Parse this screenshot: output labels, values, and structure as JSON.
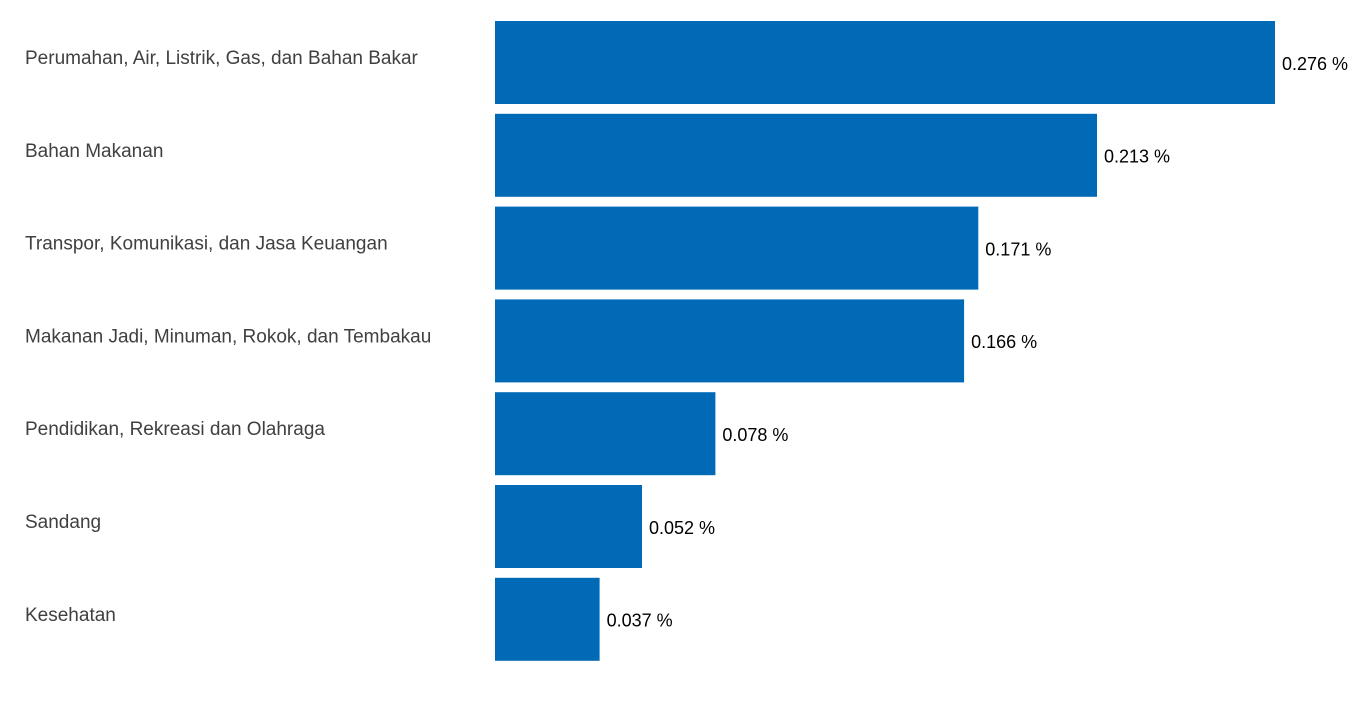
{
  "chart_data": {
    "type": "bar",
    "orientation": "horizontal",
    "categories": [
      "Perumahan, Air, Listrik, Gas, dan Bahan Bakar",
      "Bahan Makanan",
      "Transpor, Komunikasi, dan Jasa Keuangan",
      "Makanan Jadi, Minuman, Rokok, dan Tembakau",
      "Pendidikan, Rekreasi dan Olahraga",
      "Sandang",
      "Kesehatan"
    ],
    "values": [
      0.276,
      0.213,
      0.171,
      0.166,
      0.078,
      0.052,
      0.037
    ],
    "value_labels": [
      "0.276 %",
      "0.213 %",
      "0.171 %",
      "0.166 %",
      "0.078 %",
      "0.052 %",
      "0.037 %"
    ],
    "xlim": [
      0,
      0.276
    ],
    "grid": false,
    "bar_color": "#006AB6",
    "label_color": "#404040",
    "value_label_color": "#000000"
  }
}
